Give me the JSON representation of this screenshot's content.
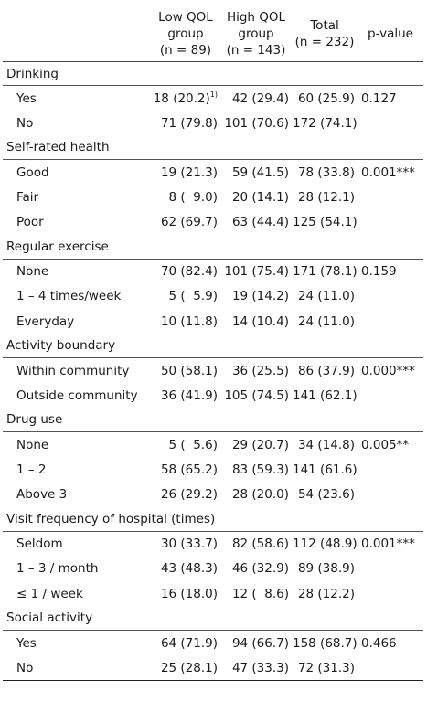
{
  "header": {
    "col1": "",
    "low": [
      "Low QOL",
      "group",
      "(n = 89)"
    ],
    "high": [
      "High QOL",
      "group",
      "(n = 143)"
    ],
    "total": [
      "Total",
      "(n = 232)"
    ],
    "p": "p-value"
  },
  "footnote_marker": "1)",
  "sections": [
    {
      "title": "Drinking",
      "rows": [
        {
          "label": "Yes",
          "low": "18 (20.2)",
          "high": "42 (29.4)",
          "total": "60 (25.9)",
          "p": "0.127"
        },
        {
          "label": "No",
          "low": "71 (79.8)",
          "high": "101 (70.6)",
          "total": "172 (74.1)",
          "p": ""
        }
      ]
    },
    {
      "title": "Self-rated health",
      "rows": [
        {
          "label": "Good",
          "low": "19 (21.3)",
          "high": "59 (41.5)",
          "total": "78 (33.8)",
          "p": "0.001***"
        },
        {
          "label": "Fair",
          "low": "8 (  9.0)",
          "high": "20 (14.1)",
          "total": "28 (12.1)",
          "p": ""
        },
        {
          "label": "Poor",
          "low": "62 (69.7)",
          "high": "63 (44.4)",
          "total": "125 (54.1)",
          "p": ""
        }
      ]
    },
    {
      "title": "Regular exercise",
      "rows": [
        {
          "label": "None",
          "low": "70 (82.4)",
          "high": "101 (75.4)",
          "total": "171 (78.1)",
          "p": "0.159"
        },
        {
          "label": "1 – 4 times/week",
          "low": "5 (  5.9)",
          "high": "19 (14.2)",
          "total": "24 (11.0)",
          "p": ""
        },
        {
          "label": "Everyday",
          "low": "10 (11.8)",
          "high": "14 (10.4)",
          "total": "24 (11.0)",
          "p": ""
        }
      ]
    },
    {
      "title": "Activity boundary",
      "rows": [
        {
          "label": "Within community",
          "low": "50 (58.1)",
          "high": "36 (25.5)",
          "total": "86 (37.9)",
          "p": "0.000***"
        },
        {
          "label": "Outside community",
          "low": "36 (41.9)",
          "high": "105 (74.5)",
          "total": "141 (62.1)",
          "p": ""
        }
      ]
    },
    {
      "title": "Drug use",
      "rows": [
        {
          "label": "None",
          "low": "5 (  5.6)",
          "high": "29 (20.7)",
          "total": "34 (14.8)",
          "p": "0.005**"
        },
        {
          "label": "1 – 2",
          "low": "58 (65.2)",
          "high": "83 (59.3)",
          "total": "141 (61.6)",
          "p": ""
        },
        {
          "label": "Above 3",
          "low": "26 (29.2)",
          "high": "28 (20.0)",
          "total": "54 (23.6)",
          "p": ""
        }
      ]
    },
    {
      "title": "Visit frequency of hospital (times)",
      "rows": [
        {
          "label": "Seldom",
          "low": "30 (33.7)",
          "high": "82 (58.6)",
          "total": "112 (48.9)",
          "p": "0.001***"
        },
        {
          "label": "1 – 3 / month",
          "low": "43 (48.3)",
          "high": "46 (32.9)",
          "total": "89 (38.9)",
          "p": ""
        },
        {
          "label": "≤ 1 / week",
          "low": "16 (18.0)",
          "high": "12 (  8.6)",
          "total": "28 (12.2)",
          "p": ""
        }
      ]
    },
    {
      "title": "Social activity",
      "rows": [
        {
          "label": "Yes",
          "low": "64 (71.9)",
          "high": "94 (66.7)",
          "total": "158 (68.7)",
          "p": "0.466"
        },
        {
          "label": "No",
          "low": "25 (28.1)",
          "high": "47 (33.3)",
          "total": "72 (31.3)",
          "p": ""
        }
      ]
    }
  ]
}
